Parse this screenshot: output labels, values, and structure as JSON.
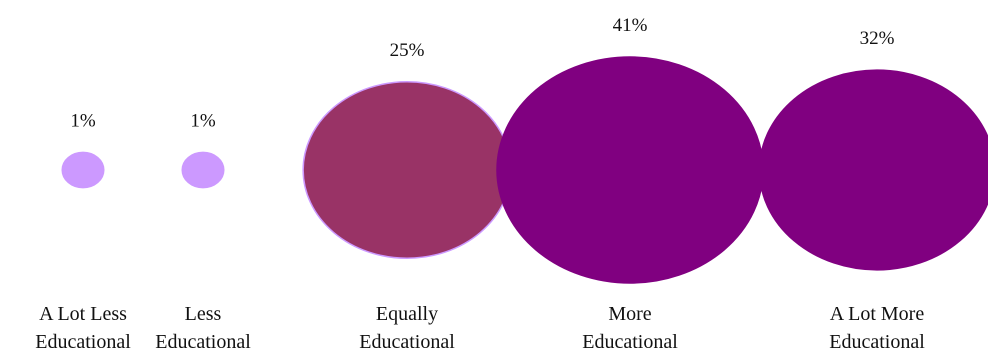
{
  "chart_data": {
    "type": "bubble",
    "title": "",
    "categories": [
      [
        "A Lot Less",
        "Educational"
      ],
      [
        "Less",
        "Educational"
      ],
      [
        "Equally",
        "Educational"
      ],
      [
        "More",
        "Educational"
      ],
      [
        "A Lot More",
        "Educational"
      ]
    ],
    "values": [
      1,
      1,
      25,
      41,
      32
    ],
    "data_labels": [
      "1%",
      "1%",
      "25%",
      "41%",
      "32%"
    ],
    "unit": "%",
    "colors": [
      "#cc99ff",
      "#cc99ff",
      "#993366",
      "#800080",
      "#800080"
    ],
    "edge_colors": [
      "#cc99ff",
      "#cc99ff",
      "#cc99ff",
      "#800080",
      "#800080"
    ],
    "legend": "none",
    "grid": false
  }
}
